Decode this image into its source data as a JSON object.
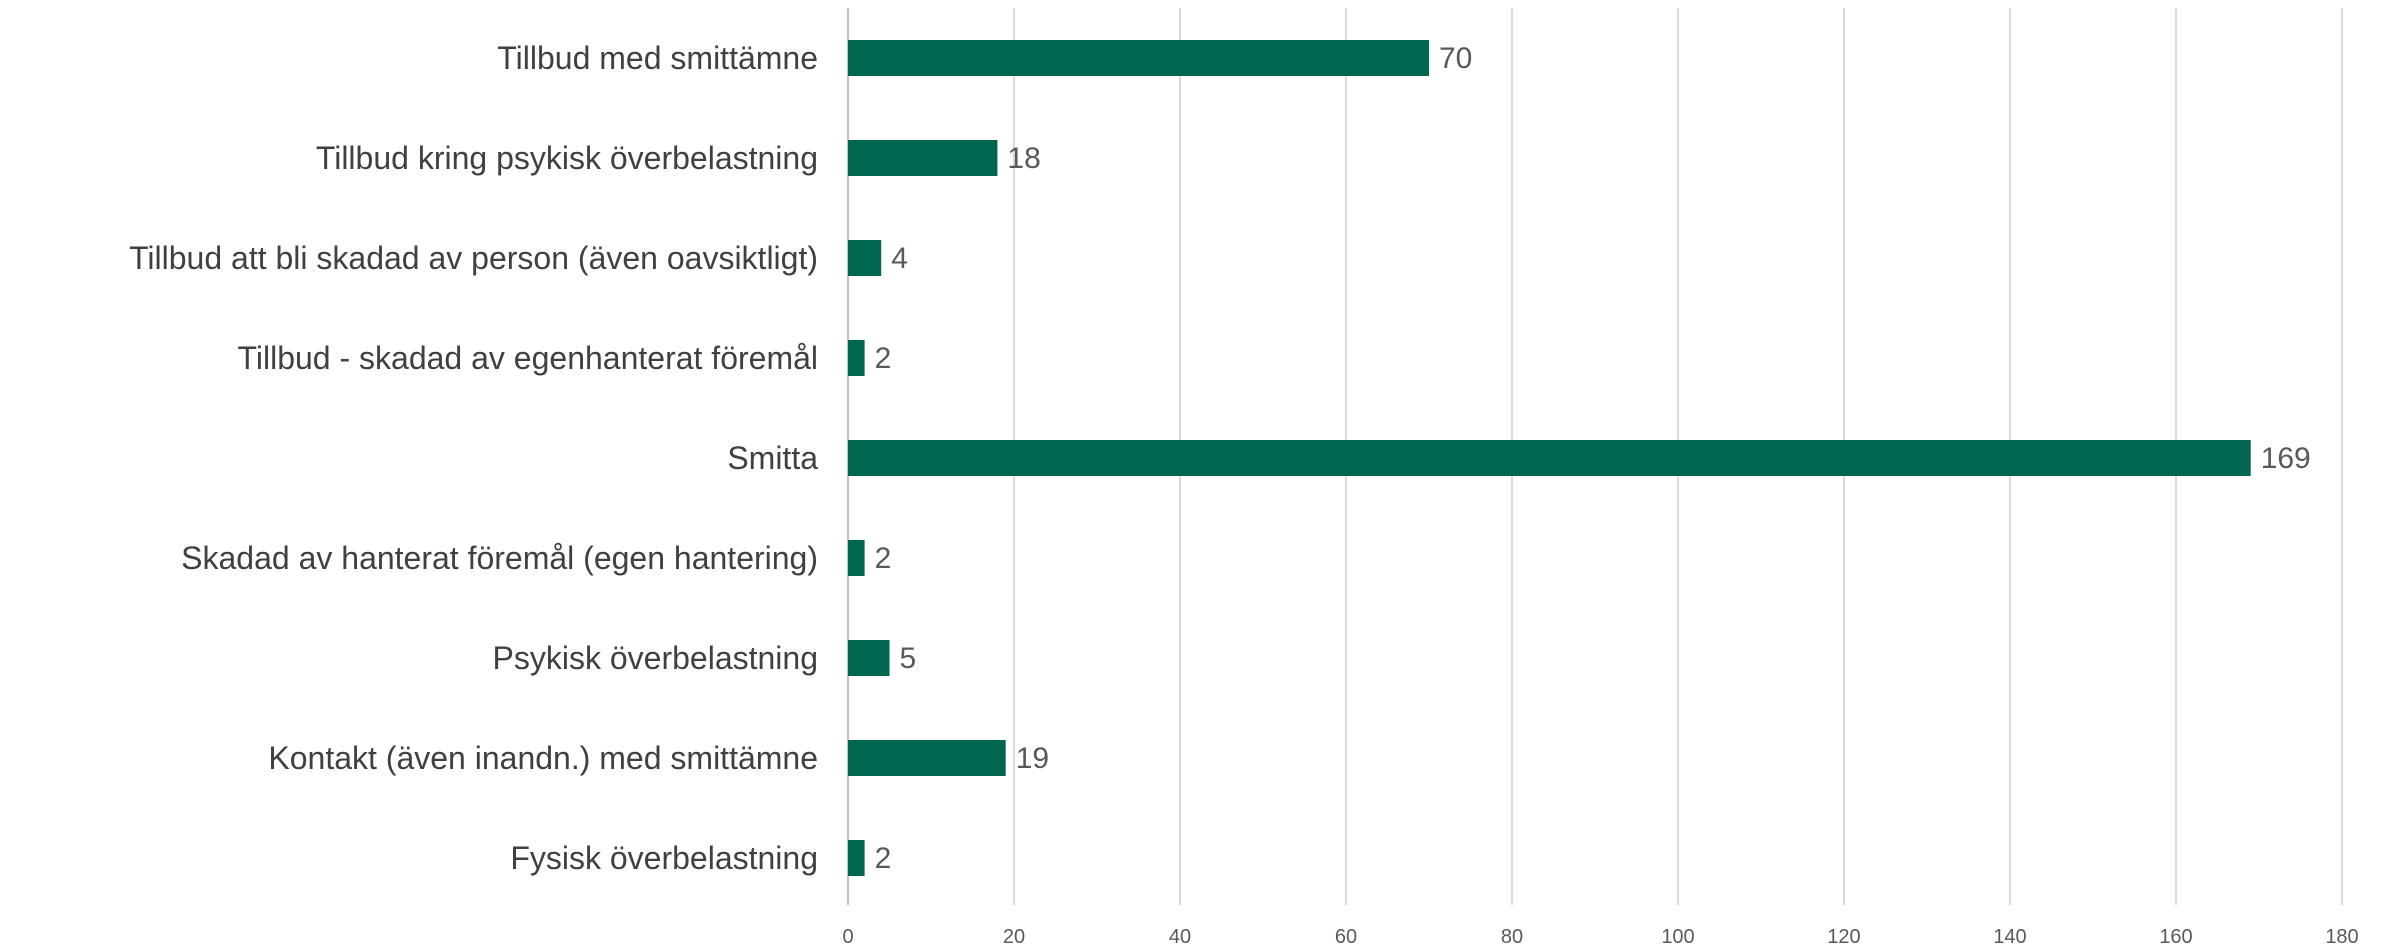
{
  "chart_data": {
    "type": "bar",
    "orientation": "horizontal",
    "title": "",
    "xlabel": "",
    "ylabel": "",
    "categories": [
      "Tillbud med smittämne",
      "Tillbud kring psykisk överbelastning",
      "Tillbud att bli skadad av person (även oavsiktligt)",
      "Tillbud - skadad av egenhanterat föremål",
      "Smitta",
      "Skadad av hanterat föremål (egen hantering)",
      "Psykisk överbelastning",
      "Kontakt (även inandn.) med smittämne",
      "Fysisk överbelastning"
    ],
    "values": [
      70,
      18,
      4,
      2,
      169,
      2,
      5,
      19,
      2
    ],
    "xlim": [
      0,
      180
    ],
    "ticks": [
      0,
      20,
      40,
      60,
      80,
      100,
      120,
      140,
      160,
      180
    ],
    "grid": true,
    "legend": "none",
    "bar_color": "#00664f",
    "data_labels": true
  }
}
